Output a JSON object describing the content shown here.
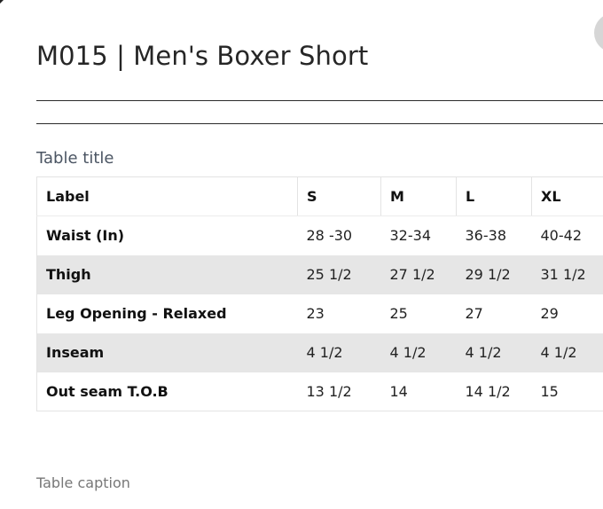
{
  "page": {
    "title": "M015 | Men's Boxer Short",
    "table_title": "Table title",
    "caption": "Table caption"
  },
  "table": {
    "headers": [
      "Label",
      "S",
      "M",
      "L",
      "XL"
    ],
    "rows": [
      [
        "Waist (In)",
        "28 -30",
        "32-34",
        "36-38",
        "40-42"
      ],
      [
        "Thigh",
        "25 1/2",
        "27 1/2",
        "29 1/2",
        "31 1/2"
      ],
      [
        "Leg Opening - Relaxed",
        "23",
        "25",
        "27",
        "29"
      ],
      [
        "Inseam",
        "4 1/2",
        "4 1/2",
        "4 1/2",
        "4 1/2"
      ],
      [
        "Out seam T.O.B",
        "13 1/2",
        "14",
        "14 1/2",
        "15"
      ]
    ]
  },
  "colors": {
    "striped_row": "#e6e6e6",
    "close_button": "#d6d6d6"
  },
  "icons": {
    "close": "close-button"
  }
}
